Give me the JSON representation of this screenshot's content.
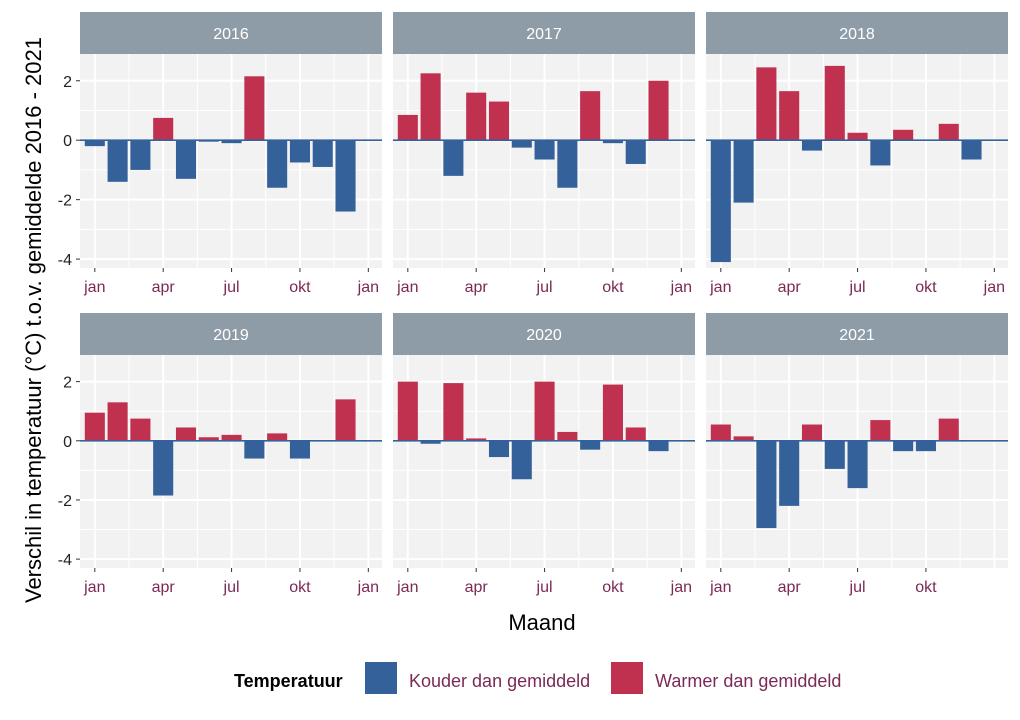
{
  "chart_data": {
    "type": "bar",
    "facet_by": "year",
    "x_tick_labels": [
      "jan",
      "apr",
      "jul",
      "okt",
      "jan"
    ],
    "xlabel": "Maand",
    "ylabel": "Verschil in temperatuur (°C) t.o.v. gemiddelde 2016 - 2021",
    "ylim": [
      -4.3,
      2.9
    ],
    "yticks": [
      -4,
      -2,
      0,
      2
    ],
    "grid": true,
    "legend": {
      "title": "Temperatuur",
      "position": "bottom",
      "items": [
        {
          "label": "Kouder dan gemiddeld",
          "color": "#34619a"
        },
        {
          "label": "Warmer dan gemiddeld",
          "color": "#c0304f"
        }
      ]
    },
    "colors": {
      "cold": "#34619a",
      "warm": "#c0304f",
      "zero_line": "#34619a",
      "strip": "#8e9ca8",
      "panel": "#f2f2f2"
    },
    "panels": [
      {
        "year": "2016",
        "values": [
          -0.2,
          -1.4,
          -1.0,
          0.75,
          -1.3,
          -0.05,
          -0.1,
          2.15,
          -1.6,
          -0.75,
          -0.9,
          -2.4
        ]
      },
      {
        "year": "2017",
        "values": [
          0.85,
          2.25,
          -1.2,
          1.6,
          1.3,
          -0.25,
          -0.65,
          -1.6,
          1.65,
          -0.1,
          -0.8,
          2.0
        ]
      },
      {
        "year": "2018",
        "values": [
          -4.1,
          -2.1,
          2.45,
          1.65,
          -0.35,
          2.5,
          0.25,
          -0.85,
          0.35,
          -0.02,
          0.55,
          -0.65
        ]
      },
      {
        "year": "2019",
        "values": [
          0.95,
          1.3,
          0.75,
          -1.85,
          0.45,
          0.12,
          0.2,
          -0.6,
          0.25,
          -0.6,
          0.02,
          1.4
        ]
      },
      {
        "year": "2020",
        "values": [
          2.0,
          -0.1,
          1.95,
          0.08,
          -0.55,
          -1.3,
          2.0,
          0.3,
          -0.3,
          1.9,
          0.45,
          -0.35
        ]
      },
      {
        "year": "2021",
        "values": [
          0.55,
          0.15,
          -2.95,
          -2.2,
          0.55,
          -0.95,
          -1.6,
          0.7,
          -0.35,
          -0.35,
          0.75
        ]
      }
    ]
  }
}
